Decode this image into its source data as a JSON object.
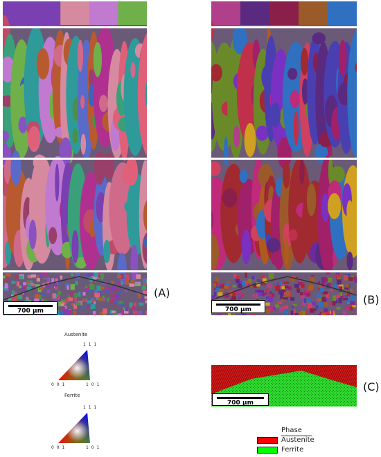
{
  "panels": {
    "A": {
      "label": "(A)",
      "scalebar": "700 µm"
    },
    "B": {
      "label": "(B)",
      "scalebar": "700 µm"
    },
    "C": {
      "label": "(C)",
      "scalebar": "700 µm"
    }
  },
  "ipf": {
    "austenite": {
      "title": "Austenite",
      "top": "1 1 1",
      "left": "0 0 1",
      "right": "1 0 1"
    },
    "ferrite": {
      "title": "Ferrite",
      "top": "1 1 1",
      "left": "0 0 1",
      "right": "1 0 1"
    }
  },
  "phase_legend": {
    "title": "Phase",
    "items": [
      {
        "label": "Austenite",
        "color": "#ff0000"
      },
      {
        "label": "Ferrite",
        "color": "#00ff00"
      }
    ]
  },
  "palettes": {
    "A": [
      "#7a3fb0",
      "#c04a6a",
      "#3aa07a",
      "#d06a8a",
      "#5a6ac8",
      "#2f9a9a",
      "#b85a30",
      "#8a52c0",
      "#d58aa0",
      "#4b8f4b",
      "#c07ad0",
      "#3f63b8",
      "#9a3f6a",
      "#e0607a",
      "#6fb04a",
      "#b03090"
    ],
    "B": [
      "#8a1f4a",
      "#6a2aa0",
      "#c0304a",
      "#b05a20",
      "#7a30c0",
      "#a0206a",
      "#d04060",
      "#4a3fb0",
      "#b0408a",
      "#9a5a2a",
      "#5a2a80",
      "#c02a7a",
      "#6a8a2a",
      "#d0a020",
      "#3070c0",
      "#a02a30"
    ]
  }
}
